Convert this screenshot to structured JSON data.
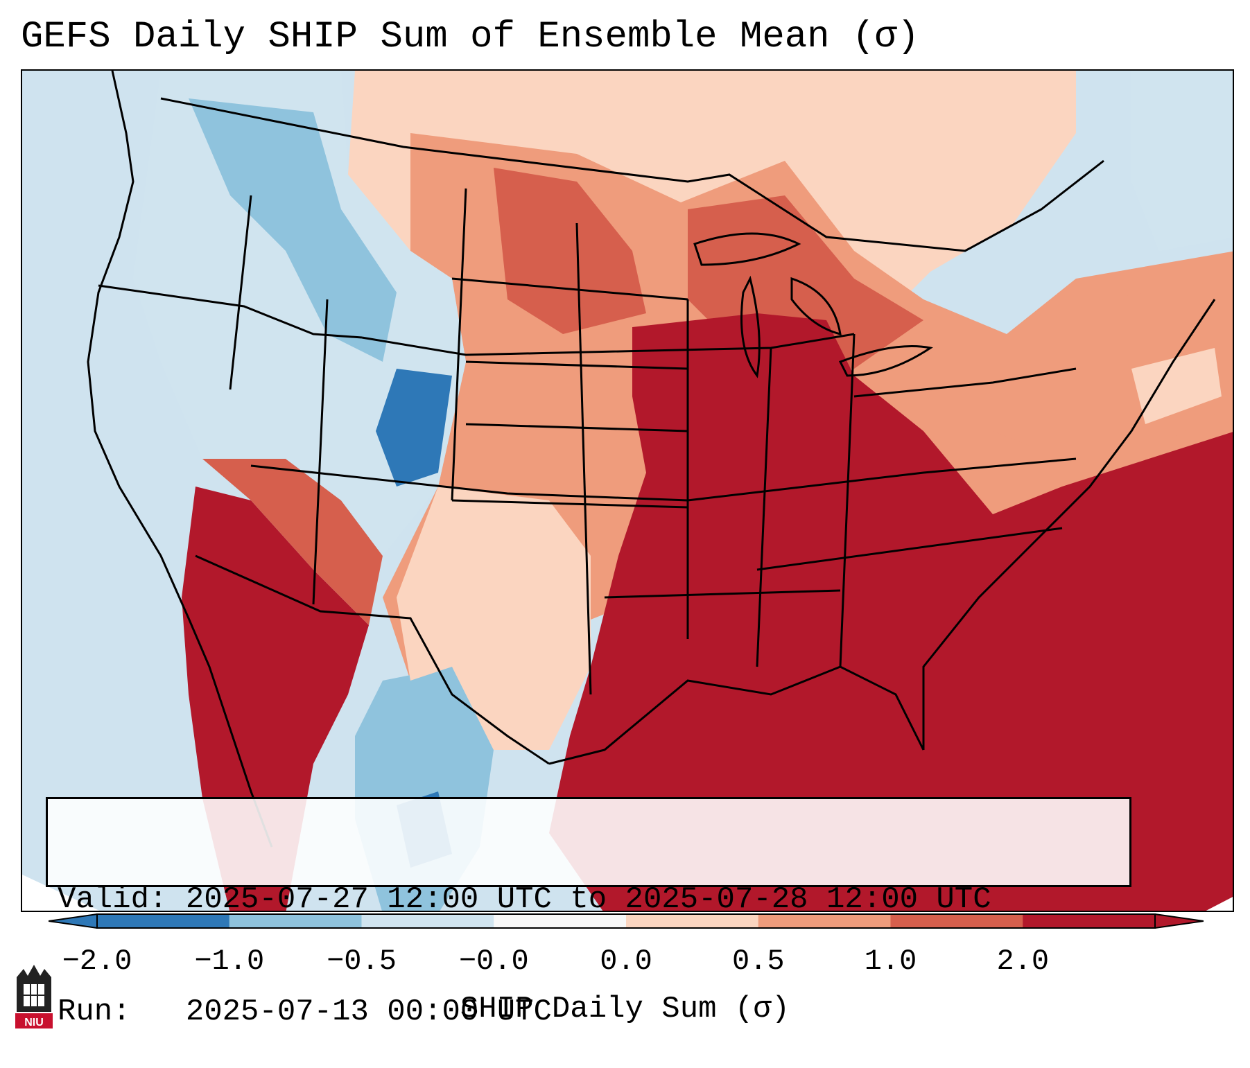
{
  "title": "GEFS Daily SHIP Sum of Ensemble Mean (σ)",
  "info": {
    "valid_line": "Valid: 2025-07-27 12:00 UTC to 2025-07-28 12:00 UTC",
    "run_line": "Run:   2025-07-13 00:00 UTC"
  },
  "colorbar": {
    "label": "SHIP Daily Sum (σ)",
    "ticks": [
      "−2.0",
      "−1.0",
      "−0.5",
      "−0.0",
      "0.0",
      "0.5",
      "1.0",
      "2.0"
    ],
    "bins": [
      {
        "color": "#2e78b7"
      },
      {
        "color": "#8fc3dd"
      },
      {
        "color": "#d0e4ef"
      },
      {
        "color": "#f7f7f7"
      },
      {
        "color": "#fbd5c0"
      },
      {
        "color": "#ef9c7c"
      },
      {
        "color": "#d65f4d"
      },
      {
        "color": "#b2182b"
      }
    ]
  },
  "logo": {
    "text": "NIU",
    "color": "#c8102e"
  },
  "map": {
    "background_color": "#cfe3ef",
    "dominant_colors": {
      "strong_positive": "#b2182b",
      "positive": "#d65f4d",
      "weak_positive": "#ef9c7c",
      "slight_positive": "#fbd5c0",
      "slight_negative": "#d0e4ef",
      "negative": "#8fc3dd",
      "strong_negative": "#2e78b7"
    }
  }
}
